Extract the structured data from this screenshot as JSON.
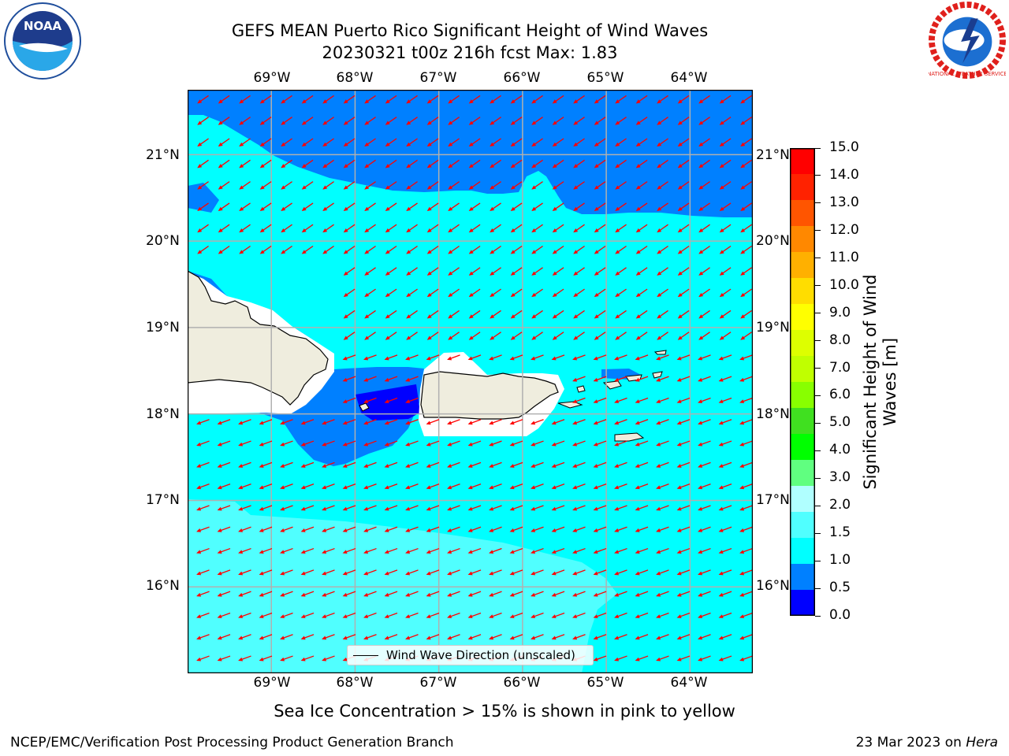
{
  "title": {
    "line1": "GEFS MEAN Puerto Rico Significant Height of Wind Waves",
    "line2": "20230321 t00z 216h fcst   Max: 1.83"
  },
  "map": {
    "lon_labels": [
      "69°W",
      "68°W",
      "67°W",
      "66°W",
      "65°W",
      "64°W"
    ],
    "lat_labels": [
      "21°N",
      "20°N",
      "19°N",
      "18°N",
      "17°N",
      "16°N"
    ],
    "lon_range": [
      -70.0,
      -63.25
    ],
    "lat_range": [
      15.0,
      21.75
    ],
    "colors": {
      "sea_deep_blue": "#0000ff",
      "sea_blue": "#0080ff",
      "sea_cyan": "#00ffff",
      "sea_light_cyan": "#50ffff",
      "land": "#efedde",
      "arrow": "#ff0000",
      "grid": "#b0b0b0"
    },
    "wind_wave_direction": "toward southwest (red arrows)"
  },
  "legend": {
    "label": "Wind Wave Direction (unscaled)"
  },
  "colorbar": {
    "label": "Significant Height of Wind\nWaves [m]",
    "ticks": [
      "15.0",
      "14.0",
      "13.0",
      "12.0",
      "11.0",
      "10.0",
      "9.0",
      "8.0",
      "7.0",
      "6.0",
      "5.0",
      "4.0",
      "3.0",
      "2.0",
      "1.5",
      "1.0",
      "0.5",
      "0.0"
    ],
    "colors": [
      "#ff0000",
      "#ff2200",
      "#ff5500",
      "#ff8800",
      "#ffb000",
      "#ffdd00",
      "#ffff00",
      "#ddff00",
      "#c0ff00",
      "#88ff00",
      "#40e020",
      "#00ff00",
      "#60ff80",
      "#b0ffff",
      "#50ffff",
      "#00ffff",
      "#0080ff",
      "#0000ff"
    ]
  },
  "footer": {
    "sea_ice_note": "Sea Ice Concentration > 15% is shown in pink to yellow",
    "left": "NCEP/EMC/Verification Post Processing Product Generation Branch",
    "right_date": "23 Mar 2023 on ",
    "right_host": "Hera"
  },
  "logos": {
    "noaa": "NOAA",
    "nws": "NATIONAL WEATHER SERVICE"
  }
}
